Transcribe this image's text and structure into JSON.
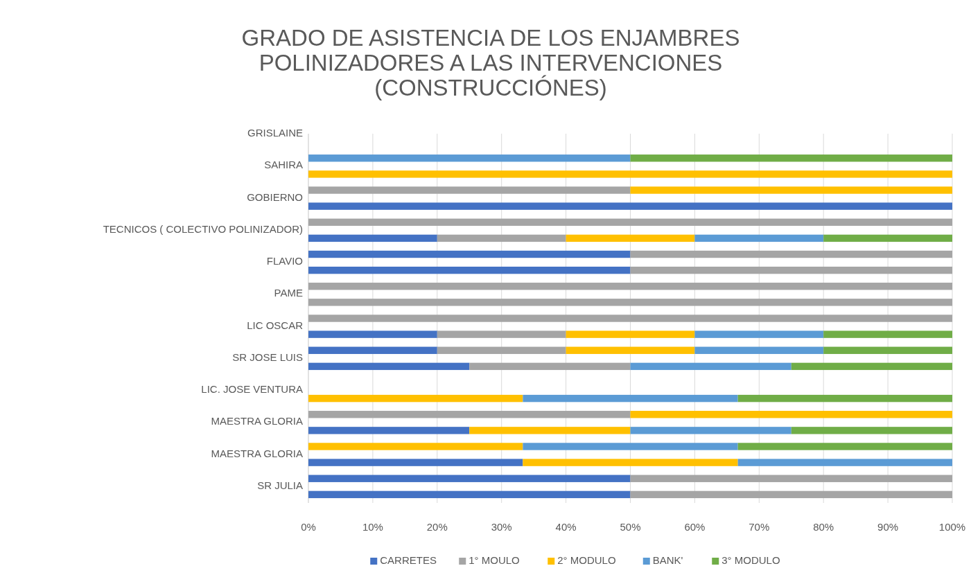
{
  "chart_data": {
    "type": "bar",
    "orientation": "horizontal",
    "stacked": true,
    "title": "GRADO DE  ASISTENCIA  DE LOS ENJAMBRES\nPOLINIZADORES A LAS INTERVENCIONES\n(CONSTRUCCIÓNES)",
    "categories": [
      "GRISLAINE",
      null,
      "SAHIRA",
      null,
      "GOBIERNO",
      null,
      "TECNICOS ( COLECTIVO POLINIZADOR)",
      null,
      "FLAVIO",
      null,
      "PAME",
      null,
      "LIC OSCAR",
      null,
      "SR JOSE LUIS",
      null,
      "LIC. JOSE VENTURA",
      null,
      "MAESTRA GLORIA",
      null,
      "MAESTRA GLORIA",
      null,
      "SR JULIA"
    ],
    "series": [
      {
        "name": "CARRETES",
        "color": "#4472c4",
        "values": [
          null,
          null,
          null,
          null,
          100,
          null,
          20,
          50,
          50,
          null,
          null,
          null,
          20,
          20,
          25,
          null,
          null,
          null,
          25,
          null,
          33.3,
          50,
          50
        ]
      },
      {
        "name": "1° MOULO",
        "color": "#a5a5a5",
        "values": [
          null,
          null,
          null,
          50,
          null,
          100,
          20,
          50,
          50,
          100,
          100,
          100,
          20,
          20,
          25,
          null,
          null,
          50,
          null,
          null,
          null,
          50,
          50
        ]
      },
      {
        "name": "2° MODULO",
        "color": "#ffc000",
        "values": [
          null,
          null,
          100,
          50,
          null,
          null,
          20,
          null,
          null,
          null,
          null,
          null,
          20,
          20,
          null,
          null,
          33.3,
          50,
          25,
          33.3,
          33.4,
          null,
          null
        ]
      },
      {
        "name": "BANK'",
        "color": "#5b9bd5",
        "values": [
          null,
          50,
          null,
          null,
          null,
          null,
          20,
          null,
          null,
          null,
          null,
          null,
          20,
          20,
          25,
          null,
          33.4,
          null,
          25,
          33.4,
          33.3,
          null,
          null
        ]
      },
      {
        "name": "3° MODULO",
        "color": "#70ad47",
        "values": [
          null,
          50,
          null,
          null,
          null,
          null,
          20,
          null,
          null,
          null,
          null,
          null,
          20,
          20,
          25,
          null,
          33.3,
          null,
          25,
          33.3,
          null,
          null,
          null
        ]
      }
    ],
    "xlim": [
      0,
      100
    ],
    "xticks": [
      {
        "value": 0,
        "label": "0%"
      },
      {
        "value": 10,
        "label": "10%"
      },
      {
        "value": 20,
        "label": "20%"
      },
      {
        "value": 30,
        "label": "30%"
      },
      {
        "value": 40,
        "label": "40%"
      },
      {
        "value": 50,
        "label": "50%"
      },
      {
        "value": 60,
        "label": "60%"
      },
      {
        "value": 70,
        "label": "70%"
      },
      {
        "value": 80,
        "label": "80%"
      },
      {
        "value": 90,
        "label": "90%"
      },
      {
        "value": 100,
        "label": "100%"
      }
    ],
    "grid": "x",
    "legend": "bottom"
  }
}
